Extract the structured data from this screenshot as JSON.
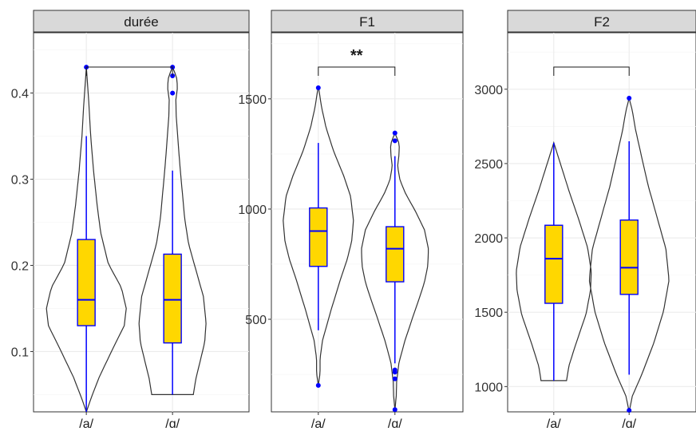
{
  "chart_data": [
    {
      "type": "violin",
      "title": "durée",
      "categories": [
        "/a/",
        "/ɑ/"
      ],
      "yticks": [
        0.1,
        0.2,
        0.3,
        0.4
      ],
      "ylim": [
        0.03,
        0.47
      ],
      "grid": true,
      "groups": [
        {
          "name": "/a/",
          "min": 0.03,
          "q1": 0.13,
          "median": 0.16,
          "q3": 0.23,
          "max": 0.35,
          "outliers": [
            0.43
          ]
        },
        {
          "name": "/ɑ/",
          "min": 0.05,
          "q1": 0.11,
          "median": 0.16,
          "q3": 0.213,
          "max": 0.31,
          "outliers": [
            0.4,
            0.42,
            0.43
          ]
        }
      ],
      "significance": ""
    },
    {
      "type": "violin",
      "title": "F1",
      "categories": [
        "/a/",
        "/ɑ/"
      ],
      "yticks": [
        500,
        1000,
        1500
      ],
      "ylim": [
        80,
        1800
      ],
      "grid": true,
      "groups": [
        {
          "name": "/a/",
          "min": 450,
          "q1": 740,
          "median": 900,
          "q3": 1005,
          "max": 1300,
          "outliers": [
            200,
            1550
          ]
        },
        {
          "name": "/ɑ/",
          "min": 300,
          "q1": 670,
          "median": 820,
          "q3": 920,
          "max": 1240,
          "outliers": [
            90,
            230,
            260,
            270,
            1310,
            1345
          ]
        }
      ],
      "significance": "**"
    },
    {
      "type": "violin",
      "title": "F2",
      "categories": [
        "/a/",
        "/ɑ/"
      ],
      "yticks": [
        1000,
        1500,
        2000,
        2500,
        3000
      ],
      "ylim": [
        830,
        3380
      ],
      "grid": true,
      "groups": [
        {
          "name": "/a/",
          "min": 1040,
          "q1": 1560,
          "median": 1860,
          "q3": 2085,
          "max": 2640,
          "outliers": []
        },
        {
          "name": "/ɑ/",
          "min": 1080,
          "q1": 1620,
          "median": 1800,
          "q3": 2120,
          "max": 2650,
          "outliers": [
            840,
            2940
          ]
        }
      ],
      "significance": ""
    }
  ]
}
